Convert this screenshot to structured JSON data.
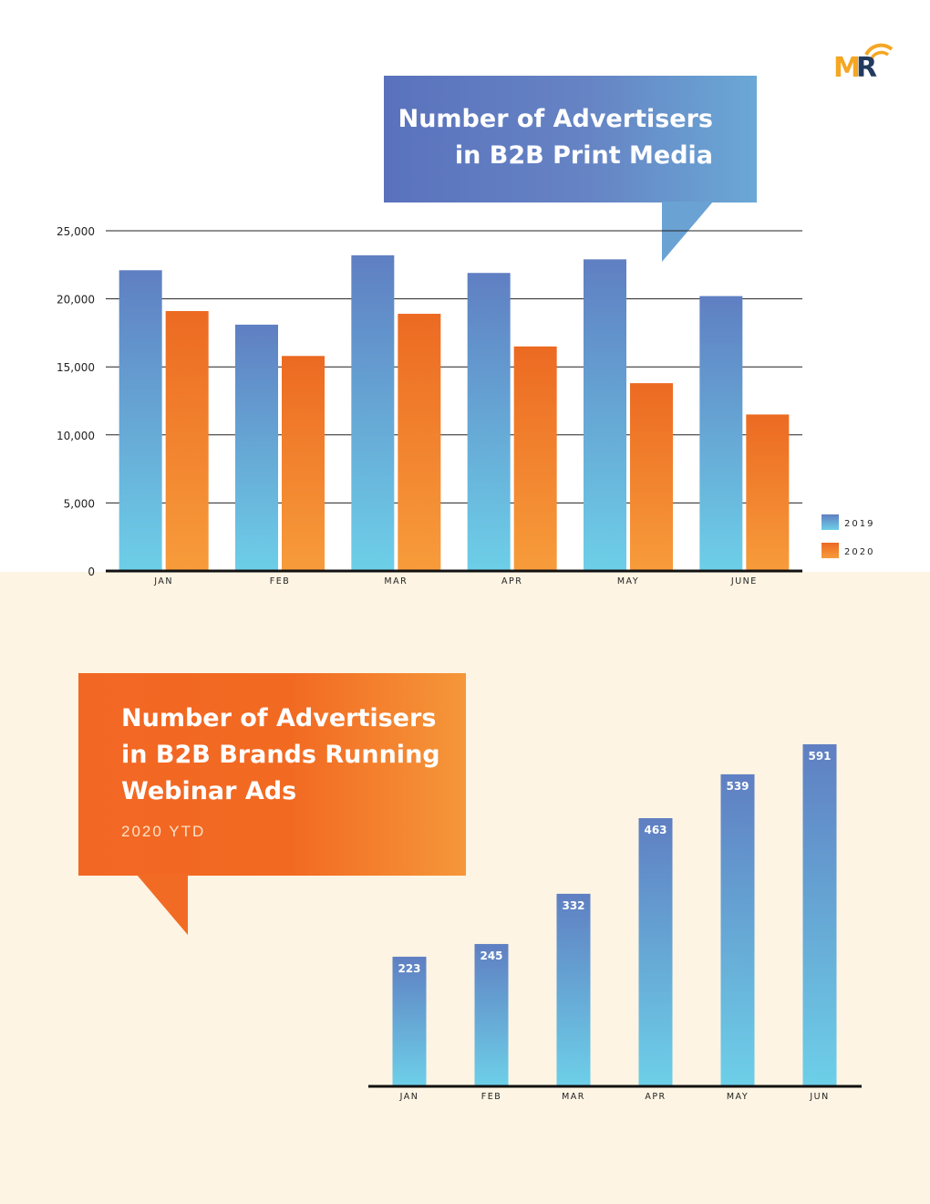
{
  "colors": {
    "series_2019_top": "#5f7fc2",
    "series_2019_bottom": "#6dcfe8",
    "series_2020_top": "#ec6a22",
    "series_2020_bottom": "#f79c3b",
    "bottom_background": "#fdf4e3",
    "logo_orange": "#f5a623",
    "logo_navy": "#233a5e"
  },
  "logo": {
    "text": "MR"
  },
  "chart1_title": {
    "line1": "Number of Advertisers",
    "line2": "in B2B Print Media"
  },
  "chart2_title": {
    "line1": "Number of Advertisers",
    "line2": "in B2B Brands Running",
    "line3": "Webinar Ads",
    "subtitle": "2020 YTD"
  },
  "chart_data": [
    {
      "type": "bar",
      "title": "Number of Advertisers in B2B Print Media",
      "categories": [
        "JAN",
        "FEB",
        "MAR",
        "APR",
        "MAY",
        "JUNE"
      ],
      "series": [
        {
          "name": "2019",
          "values": [
            22100,
            18100,
            23200,
            21900,
            22900,
            20200
          ]
        },
        {
          "name": "2020",
          "values": [
            19100,
            15800,
            18900,
            16500,
            13800,
            11500
          ]
        }
      ],
      "yticks": [
        "25,000",
        "20,000",
        "15,000",
        "10,000",
        "5,000",
        "0"
      ],
      "ylim": [
        0,
        25000
      ],
      "grid": true,
      "legend": "right"
    },
    {
      "type": "bar",
      "title": "Number of Advertisers in B2B Brands Running Webinar Ads",
      "subtitle": "2020 YTD",
      "categories": [
        "JAN",
        "FEB",
        "MAR",
        "APR",
        "MAY",
        "JUN"
      ],
      "values": [
        223,
        245,
        332,
        463,
        539,
        591
      ],
      "data_labels": [
        "223",
        "245",
        "332",
        "463",
        "539",
        "591"
      ],
      "grid": false
    }
  ]
}
